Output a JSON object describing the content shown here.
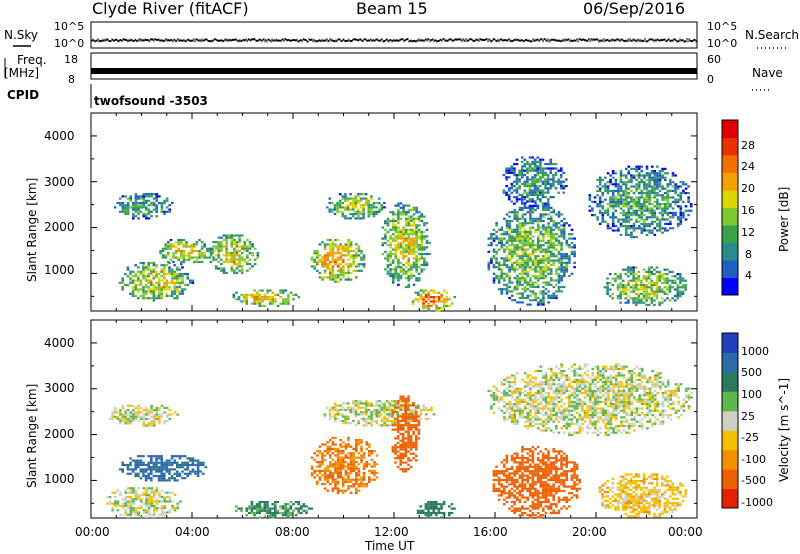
{
  "header": {
    "title": "Clyde River (fitACF)",
    "beam": "Beam 15",
    "date": "06/Sep/2016"
  },
  "strips": {
    "nsky_label": "N.Sky",
    "nsky_ticks": [
      "10^5",
      "10^0"
    ],
    "nsearch_label": "N.Search",
    "nsearch_ticks": [
      "10^5",
      "10^0"
    ],
    "freq_label": "Freq.",
    "freq_unit": "[MHz]",
    "freq_ticks": [
      "18",
      "8"
    ],
    "nave_label": "Nave",
    "nave_ticks": [
      "60",
      "0"
    ],
    "cpid_label": "CPID",
    "cpid_value": "twofsound -3503"
  },
  "chart_data": [
    {
      "type": "heatmap",
      "name": "power",
      "ylabel": "Slant Range [km]",
      "xlabel": "",
      "xlim": [
        "00:00",
        "24:00"
      ],
      "ylim": [
        180,
        4500
      ],
      "y_ticks": [
        "1000",
        "2000",
        "3000",
        "4000"
      ],
      "colorbar": {
        "label": "Power [dB]",
        "ticks": [
          "4",
          "8",
          "12",
          "16",
          "20",
          "24",
          "28"
        ],
        "colors": [
          "#0000ff",
          "#1f5fbf",
          "#2b8b8b",
          "#3aa04c",
          "#7ac92f",
          "#d8d800",
          "#f4a000",
          "#f07000",
          "#ee3000",
          "#e00000"
        ]
      },
      "echo_bands": [
        {
          "t_start": 0.8,
          "t_end": 3.2,
          "r_min": 2200,
          "r_max": 2800,
          "level": 0.35
        },
        {
          "t_start": 1.0,
          "t_end": 4.0,
          "r_min": 400,
          "r_max": 1300,
          "level": 0.55
        },
        {
          "t_start": 2.6,
          "t_end": 4.8,
          "r_min": 1200,
          "r_max": 1800,
          "level": 0.6
        },
        {
          "t_start": 4.6,
          "t_end": 6.6,
          "r_min": 1000,
          "r_max": 1900,
          "level": 0.55
        },
        {
          "t_start": 5.5,
          "t_end": 8.2,
          "r_min": 300,
          "r_max": 700,
          "level": 0.6
        },
        {
          "t_start": 8.6,
          "t_end": 10.8,
          "r_min": 800,
          "r_max": 1800,
          "level": 0.7
        },
        {
          "t_start": 9.2,
          "t_end": 11.6,
          "r_min": 2200,
          "r_max": 2800,
          "level": 0.5
        },
        {
          "t_start": 11.4,
          "t_end": 13.4,
          "r_min": 700,
          "r_max": 2600,
          "level": 0.55
        },
        {
          "t_start": 12.6,
          "t_end": 14.4,
          "r_min": 200,
          "r_max": 700,
          "level": 0.8
        },
        {
          "t_start": 15.6,
          "t_end": 19.2,
          "r_min": 300,
          "r_max": 2600,
          "level": 0.45
        },
        {
          "t_start": 16.2,
          "t_end": 18.8,
          "r_min": 2400,
          "r_max": 3600,
          "level": 0.3
        },
        {
          "t_start": 19.6,
          "t_end": 23.8,
          "r_min": 1800,
          "r_max": 3400,
          "level": 0.35
        },
        {
          "t_start": 20.2,
          "t_end": 23.6,
          "r_min": 300,
          "r_max": 1200,
          "level": 0.5
        }
      ]
    },
    {
      "type": "heatmap",
      "name": "velocity",
      "ylabel": "Slant Range [km]",
      "xlabel": "Time UT",
      "xlim": [
        "00:00",
        "24:00"
      ],
      "ylim": [
        180,
        4500
      ],
      "x_ticks": [
        "00:00",
        "04:00",
        "08:00",
        "12:00",
        "16:00",
        "20:00",
        "00:00"
      ],
      "y_ticks": [
        "1000",
        "2000",
        "3000",
        "4000"
      ],
      "colorbar": {
        "label": "Velocity [m s^-1]",
        "ticks": [
          "1000",
          "500",
          "100",
          "25",
          "-25",
          "-100",
          "-500",
          "-1000"
        ],
        "colors": [
          "#2040c0",
          "#2c6aa8",
          "#2a7a60",
          "#5cb84c",
          "#cfcfc4",
          "#f4c000",
          "#f49000",
          "#ee6000",
          "#e42000"
        ]
      },
      "echo_bands": [
        {
          "t_start": 0.6,
          "t_end": 3.4,
          "r_min": 2200,
          "r_max": 2700,
          "velocity": 0
        },
        {
          "t_start": 0.5,
          "t_end": 3.5,
          "r_min": 200,
          "r_max": 900,
          "velocity": 0
        },
        {
          "t_start": 1.0,
          "t_end": 4.6,
          "r_min": 1000,
          "r_max": 1600,
          "velocity": 300
        },
        {
          "t_start": 5.6,
          "t_end": 8.8,
          "r_min": 200,
          "r_max": 600,
          "velocity": 80
        },
        {
          "t_start": 8.6,
          "t_end": 11.4,
          "r_min": 700,
          "r_max": 2000,
          "velocity": -300
        },
        {
          "t_start": 9.0,
          "t_end": 13.6,
          "r_min": 2200,
          "r_max": 2800,
          "velocity": 0
        },
        {
          "t_start": 11.8,
          "t_end": 13.0,
          "r_min": 1200,
          "r_max": 2900,
          "velocity": -400
        },
        {
          "t_start": 12.8,
          "t_end": 14.4,
          "r_min": 200,
          "r_max": 600,
          "velocity": 150
        },
        {
          "t_start": 15.8,
          "t_end": 19.4,
          "r_min": 200,
          "r_max": 1800,
          "velocity": -450
        },
        {
          "t_start": 15.6,
          "t_end": 23.8,
          "r_min": 2000,
          "r_max": 3600,
          "velocity": 0
        },
        {
          "t_start": 20.0,
          "t_end": 23.6,
          "r_min": 200,
          "r_max": 1200,
          "velocity": -60
        }
      ]
    }
  ]
}
